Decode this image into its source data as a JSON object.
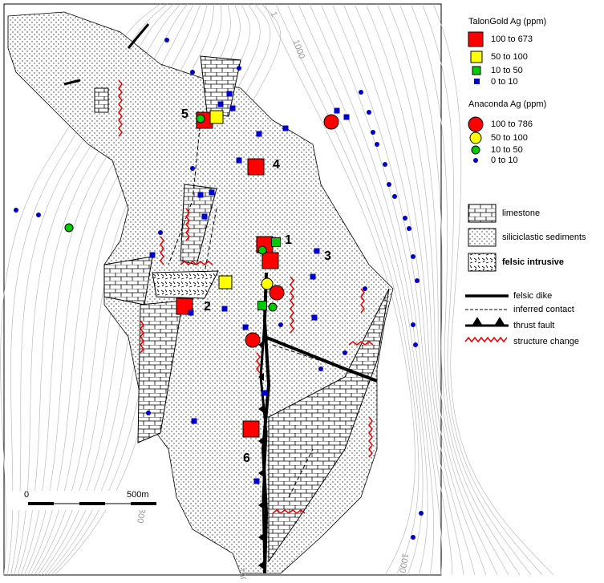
{
  "legend": {
    "talongold": {
      "title": "TalonGold Ag (ppm)",
      "items": [
        "100 to 673",
        "50 to 100",
        "10 to  50",
        "0 to  10"
      ]
    },
    "anaconda": {
      "title": "Anaconda Ag (ppm)",
      "items": [
        "100 to 786",
        "50 to 100",
        "10 to  50",
        "0 to  10"
      ]
    },
    "units": [
      "limestone",
      "siliciclastic sediments",
      "felsic intrusive"
    ],
    "lines": [
      "felsic dike",
      "inferred contact",
      "thrust fault",
      "structure change"
    ]
  },
  "site_labels": [
    "1",
    "2",
    "3",
    "4",
    "5",
    "6"
  ],
  "scale_bar": {
    "start": "0",
    "end": "500m"
  },
  "contour_labels": [
    "1",
    "1000",
    "1300",
    "1000",
    "140"
  ]
}
